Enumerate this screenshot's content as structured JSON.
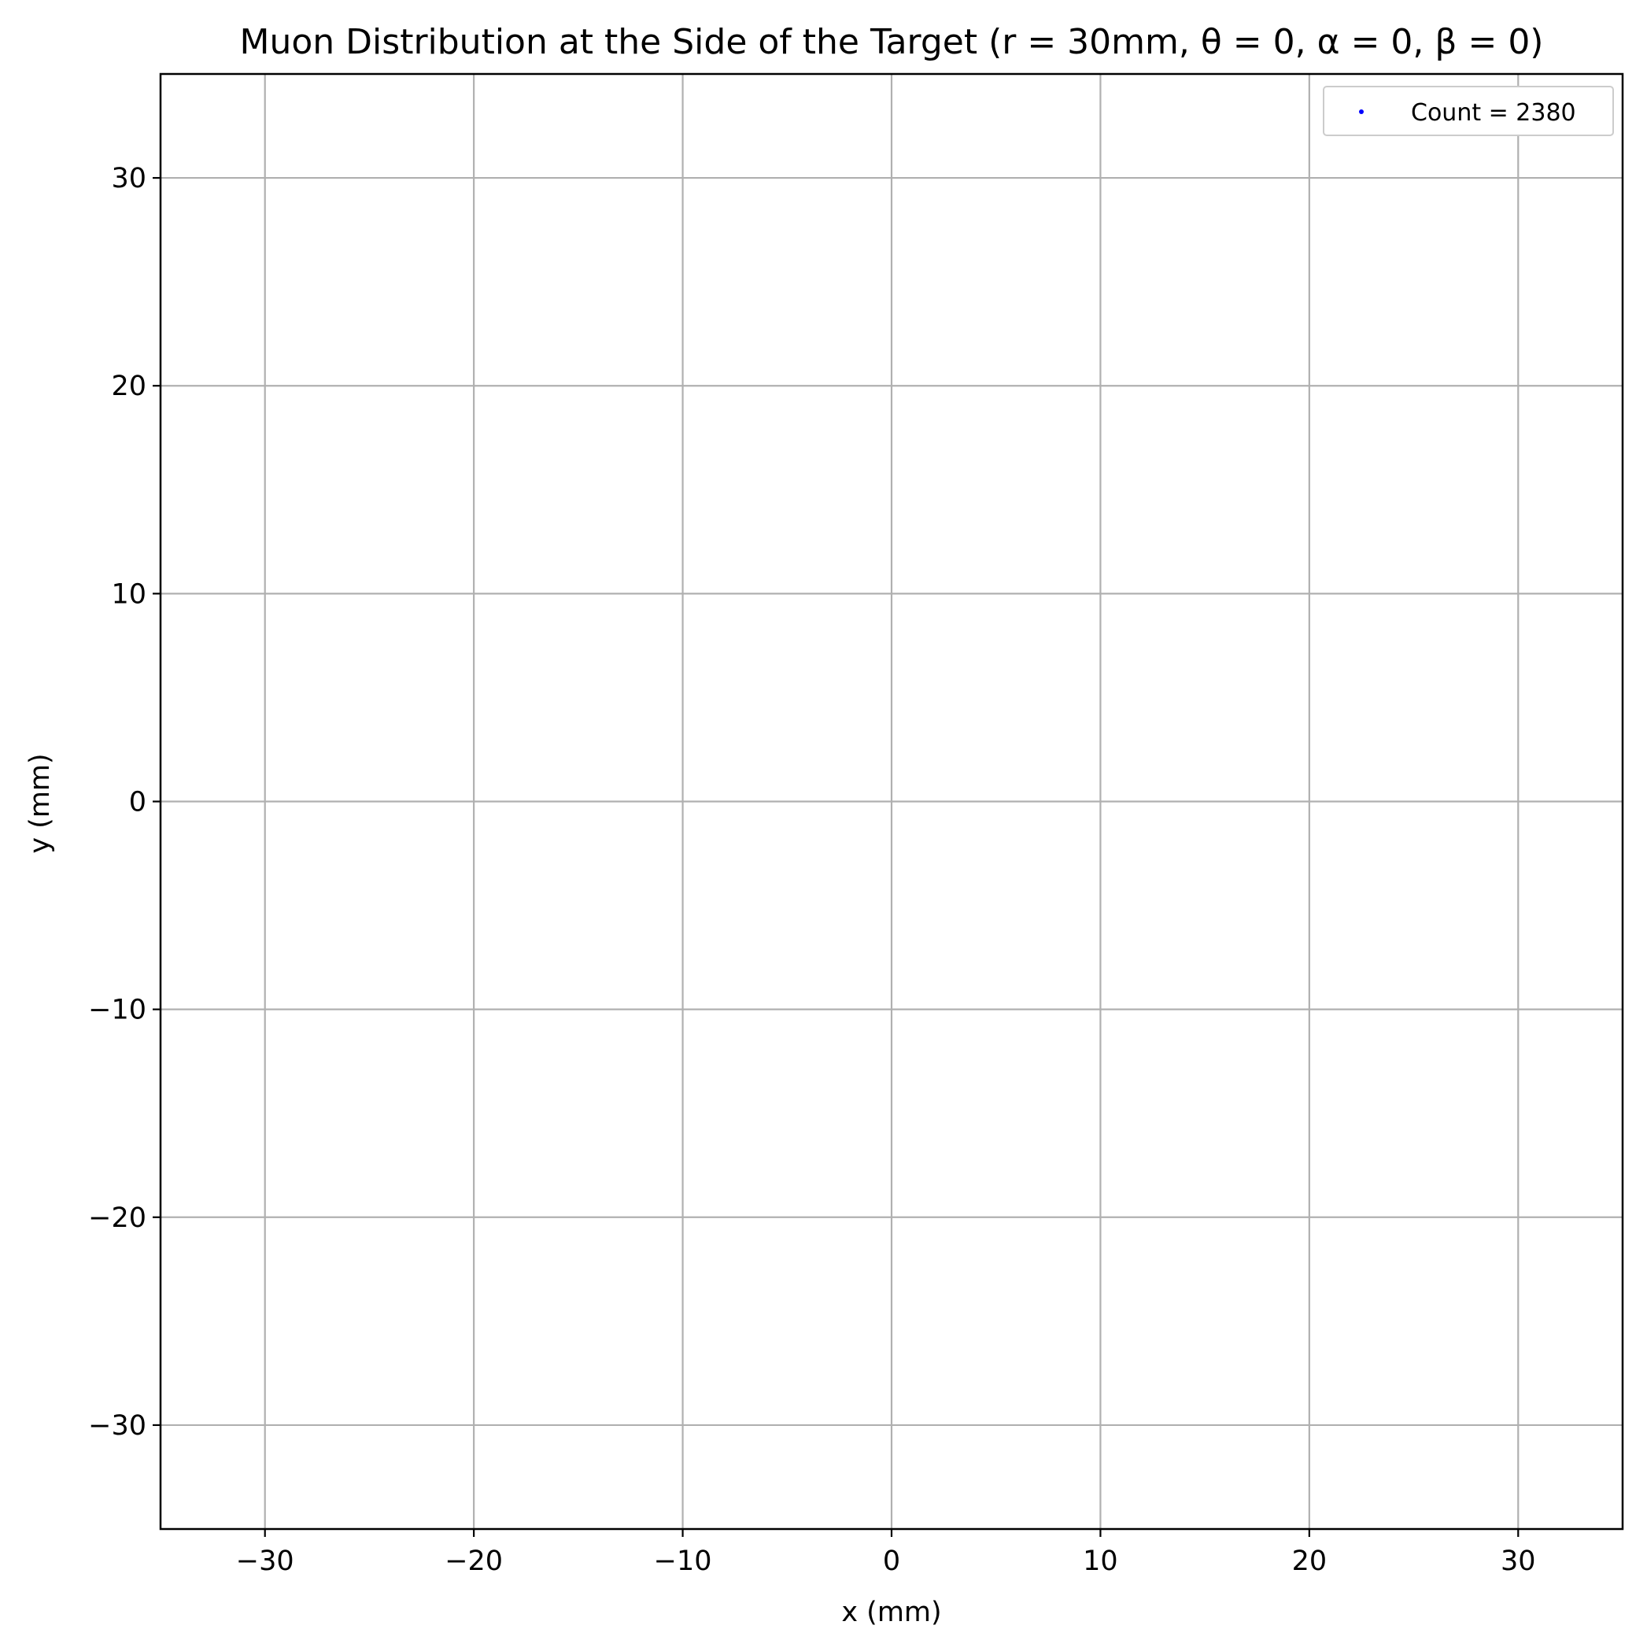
{
  "chart_data": {
    "type": "scatter",
    "title": "Muon Distribution at the Side of the Target (r = 30mm, θ = 0, α = 0, β = 0)",
    "xlabel": "x (mm)",
    "ylabel": "y (mm)",
    "xlim": [
      -35,
      35
    ],
    "ylim": [
      -35,
      35
    ],
    "xticks": [
      -30,
      -20,
      -10,
      0,
      10,
      20,
      30
    ],
    "yticks": [
      -30,
      -20,
      -10,
      0,
      10,
      20,
      30
    ],
    "xtick_labels": [
      "−30",
      "−20",
      "−10",
      "0",
      "10",
      "20",
      "30"
    ],
    "ytick_labels": [
      "−30",
      "−20",
      "−10",
      "0",
      "10",
      "20",
      "30"
    ],
    "grid": true,
    "legend": {
      "position": "top-right",
      "entries": [
        {
          "label": "Count = 2380",
          "marker": "dot",
          "color": "#0000ff"
        }
      ]
    },
    "series": [
      {
        "name": "Count = 2380",
        "color": "#0000ff",
        "points": []
      }
    ]
  },
  "colors": {
    "grid": "#b0b0b0",
    "axes": "#000000",
    "marker": "#0000ff",
    "legend_border": "#cccccc"
  }
}
